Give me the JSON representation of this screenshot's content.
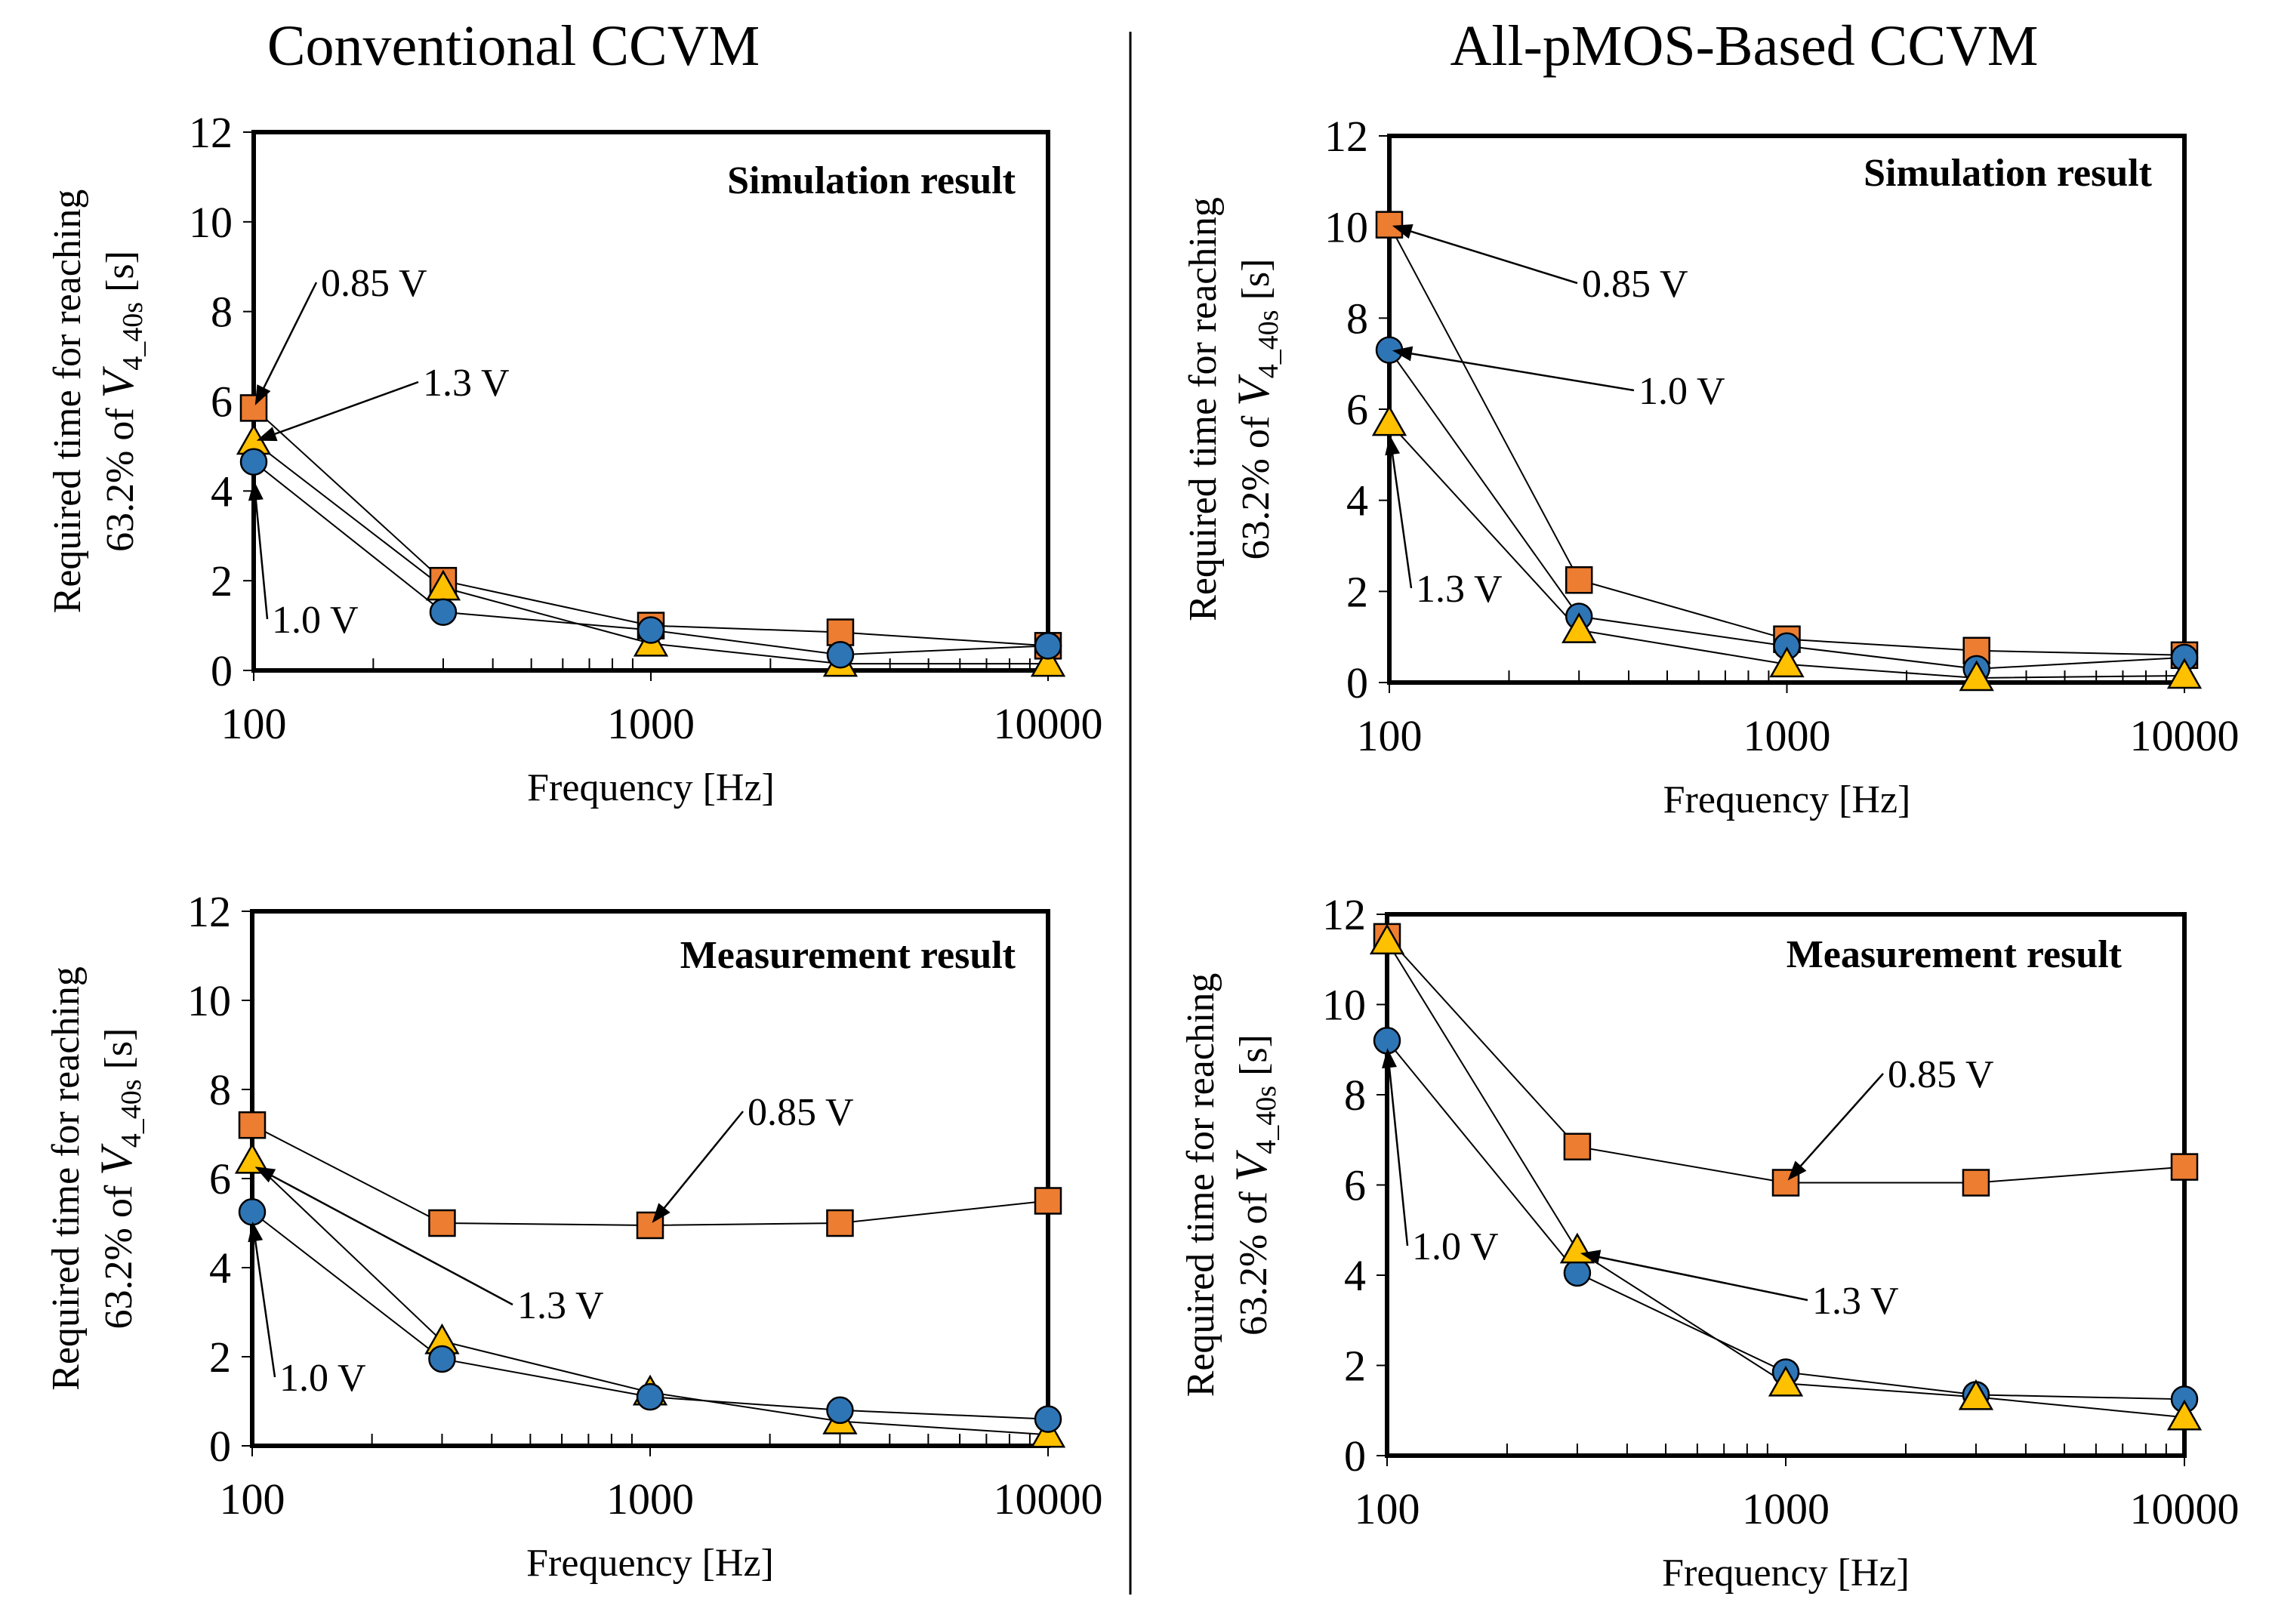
{
  "columns": [
    {
      "title": "Conventional CCVM"
    },
    {
      "title": "All-pMOS-Based CCVM"
    }
  ],
  "chart_data": [
    {
      "type": "scatter",
      "title": "Simulation result",
      "column": "Conventional CCVM",
      "xlabel": "Frequency [Hz]",
      "ylabel_line1": "Required time for reaching",
      "ylabel_line2_prefix": "63.2% of ",
      "ylabel_var": "V",
      "ylabel_sub": "4_40s",
      "ylabel_unit": " [s]",
      "xscale": "log",
      "xlim": [
        100,
        10000
      ],
      "ylim": [
        0,
        12
      ],
      "xticks": [
        "100",
        "1000",
        "10000"
      ],
      "yticks": [
        "0",
        "2",
        "4",
        "6",
        "8",
        "10",
        "12"
      ],
      "x": [
        100,
        300,
        1000,
        3000,
        10000
      ],
      "series": [
        {
          "name": "0.85 V",
          "marker": "square",
          "color": "#ED7D31",
          "values": [
            5.85,
            2.0,
            1.0,
            0.85,
            0.55
          ]
        },
        {
          "name": "1.3 V",
          "marker": "triangle",
          "color": "#FFC000",
          "values": [
            5.1,
            1.85,
            0.6,
            0.15,
            0.15
          ]
        },
        {
          "name": "1.0 V",
          "marker": "circle",
          "color": "#2E75B6",
          "values": [
            4.65,
            1.3,
            0.9,
            0.35,
            0.55
          ]
        }
      ],
      "annotations": [
        {
          "text": "0.85 V",
          "target_x": 100,
          "target_y": 5.85
        },
        {
          "text": "1.3 V",
          "target_x": 100,
          "target_y": 5.1
        },
        {
          "text": "1.0 V",
          "target_x": 100,
          "target_y": 4.3
        }
      ]
    },
    {
      "type": "scatter",
      "title": "Simulation result",
      "column": "All-pMOS-Based CCVM",
      "xlabel": "Frequency [Hz]",
      "ylabel_line1": "Required time for reaching",
      "ylabel_line2_prefix": "63.2% of ",
      "ylabel_var": "V",
      "ylabel_sub": "4_40s",
      "ylabel_unit": " [s]",
      "xscale": "log",
      "xlim": [
        100,
        10000
      ],
      "ylim": [
        0,
        12
      ],
      "xticks": [
        "100",
        "1000",
        "10000"
      ],
      "yticks": [
        "0",
        "2",
        "4",
        "6",
        "8",
        "10",
        "12"
      ],
      "x": [
        100,
        300,
        1000,
        3000,
        10000
      ],
      "series": [
        {
          "name": "0.85 V",
          "marker": "square",
          "color": "#ED7D31",
          "values": [
            10.05,
            2.25,
            0.95,
            0.7,
            0.6
          ]
        },
        {
          "name": "1.0 V",
          "marker": "circle",
          "color": "#2E75B6",
          "values": [
            7.3,
            1.45,
            0.8,
            0.3,
            0.55
          ]
        },
        {
          "name": "1.3 V",
          "marker": "triangle",
          "color": "#FFC000",
          "values": [
            5.7,
            1.15,
            0.4,
            0.1,
            0.15
          ]
        }
      ],
      "annotations": [
        {
          "text": "0.85 V",
          "target_x": 100,
          "target_y": 10.05
        },
        {
          "text": "1.0 V",
          "target_x": 100,
          "target_y": 7.3
        },
        {
          "text": "1.3 V",
          "target_x": 100,
          "target_y": 5.5
        }
      ]
    },
    {
      "type": "scatter",
      "title": "Measurement result",
      "column": "Conventional CCVM",
      "xlabel": "Frequency [Hz]",
      "ylabel_line1": "Required time for reaching",
      "ylabel_line2_prefix": "63.2% of ",
      "ylabel_var": "V",
      "ylabel_sub": "4_40s",
      "ylabel_unit": " [s]",
      "xscale": "log",
      "xlim": [
        100,
        10000
      ],
      "ylim": [
        0,
        12
      ],
      "xticks": [
        "100",
        "1000",
        "10000"
      ],
      "yticks": [
        "0",
        "2",
        "4",
        "6",
        "8",
        "10",
        "12"
      ],
      "x": [
        100,
        300,
        1000,
        3000,
        10000
      ],
      "series": [
        {
          "name": "0.85 V",
          "marker": "square",
          "color": "#ED7D31",
          "values": [
            7.2,
            5.0,
            4.95,
            5.0,
            5.5
          ]
        },
        {
          "name": "1.3 V",
          "marker": "triangle",
          "color": "#FFC000",
          "values": [
            6.4,
            2.35,
            1.2,
            0.55,
            0.25
          ]
        },
        {
          "name": "1.0 V",
          "marker": "circle",
          "color": "#2E75B6",
          "values": [
            5.25,
            1.95,
            1.1,
            0.8,
            0.6
          ]
        }
      ],
      "annotations": [
        {
          "text": "0.85 V",
          "target_x": 1000,
          "target_y": 4.95
        },
        {
          "text": "1.3 V",
          "target_x": 100,
          "target_y": 6.3
        },
        {
          "text": "1.0 V",
          "target_x": 100,
          "target_y": 5.1
        }
      ]
    },
    {
      "type": "scatter",
      "title": "Measurement result",
      "column": "All-pMOS-Based CCVM",
      "xlabel": "Frequency [Hz]",
      "ylabel_line1": "Required time for reaching",
      "ylabel_line2_prefix": "63.2% of ",
      "ylabel_var": "V",
      "ylabel_sub": "4_40s",
      "ylabel_unit": " [s]",
      "xscale": "log",
      "xlim": [
        100,
        10000
      ],
      "ylim": [
        0,
        12
      ],
      "xticks": [
        "100",
        "1000",
        "10000"
      ],
      "yticks": [
        "0",
        "2",
        "4",
        "6",
        "8",
        "10",
        "12"
      ],
      "x": [
        100,
        300,
        1000,
        3000,
        10000
      ],
      "series": [
        {
          "name": "0.85 V",
          "marker": "square",
          "color": "#ED7D31",
          "values": [
            11.5,
            6.85,
            6.05,
            6.05,
            6.4
          ]
        },
        {
          "name": "1.0 V",
          "marker": "circle",
          "color": "#2E75B6",
          "values": [
            9.2,
            4.05,
            1.85,
            1.35,
            1.25
          ]
        },
        {
          "name": "1.3 V",
          "marker": "triangle",
          "color": "#FFC000",
          "values": [
            11.4,
            4.55,
            1.6,
            1.3,
            0.85
          ]
        }
      ],
      "annotations": [
        {
          "text": "0.85 V",
          "target_x": 1000,
          "target_y": 6.05
        },
        {
          "text": "1.3 V",
          "target_x": 300,
          "target_y": 4.5
        },
        {
          "text": "1.0 V",
          "target_x": 100,
          "target_y": 9.1
        }
      ]
    }
  ]
}
